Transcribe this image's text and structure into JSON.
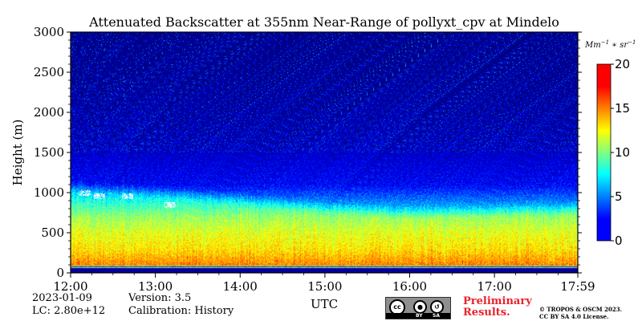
{
  "chart_data": {
    "type": "heatmap",
    "title": "Attenuated Backscatter at 355nm Near-Range of pollyxt_cpv at Mindelo",
    "ylabel": "Height (m)",
    "xlabel": "UTC",
    "y_ticks": [
      "0",
      "500",
      "1000",
      "1500",
      "2000",
      "2500",
      "3000"
    ],
    "ylim": [
      0,
      3000
    ],
    "x_ticks": [
      "12:00",
      "13:00",
      "14:00",
      "15:00",
      "16:00",
      "17:00",
      "17:59"
    ],
    "xlim": [
      "12:00",
      "17:59"
    ],
    "colorbar": {
      "unit": "Mm⁻¹ * sr⁻¹",
      "ticks": [
        "0",
        "5",
        "10",
        "15",
        "20"
      ],
      "range": [
        0,
        20
      ],
      "colormap": "jet"
    },
    "profile": {
      "height_m": [
        0,
        80,
        100,
        300,
        500,
        700,
        900,
        1100,
        1500,
        2000,
        2500,
        3000
      ],
      "backscatter": [
        2,
        3,
        15,
        13,
        12,
        10.5,
        8,
        5.5,
        4.5,
        3.5,
        3,
        2.5
      ]
    },
    "mixed_layer_top_m": [
      {
        "time": "12:00",
        "height": 1000
      },
      {
        "time": "13:00",
        "height": 940
      },
      {
        "time": "14:00",
        "height": 850
      },
      {
        "time": "15:00",
        "height": 740
      },
      {
        "time": "16:00",
        "height": 680
      },
      {
        "time": "17:00",
        "height": 700
      },
      {
        "time": "17:59",
        "height": 740
      }
    ],
    "cloud_base_m": [
      {
        "time": "12:10",
        "height": 1000
      },
      {
        "time": "12:20",
        "height": 960
      },
      {
        "time": "12:40",
        "height": 960
      },
      {
        "time": "13:10",
        "height": 850
      }
    ]
  },
  "info": {
    "date": "2023-01-09",
    "lc": "LC: 2.80e+12",
    "version": "Version: 3.5",
    "calibration": "Calibration: History"
  },
  "license": {
    "cc": "cc",
    "by": "BY",
    "sa": "SA",
    "preliminary_line1": "Preliminary",
    "preliminary_line2": "Results.",
    "copyright_line1": "© TROPOS & OSCM 2023.",
    "copyright_line2": "CC BY SA 4.0 License."
  },
  "colors": {
    "jet_low": "#00007f",
    "jet_mid": "#7fff7f",
    "jet_high": "#7f0000",
    "preliminary": "#e8232a"
  }
}
